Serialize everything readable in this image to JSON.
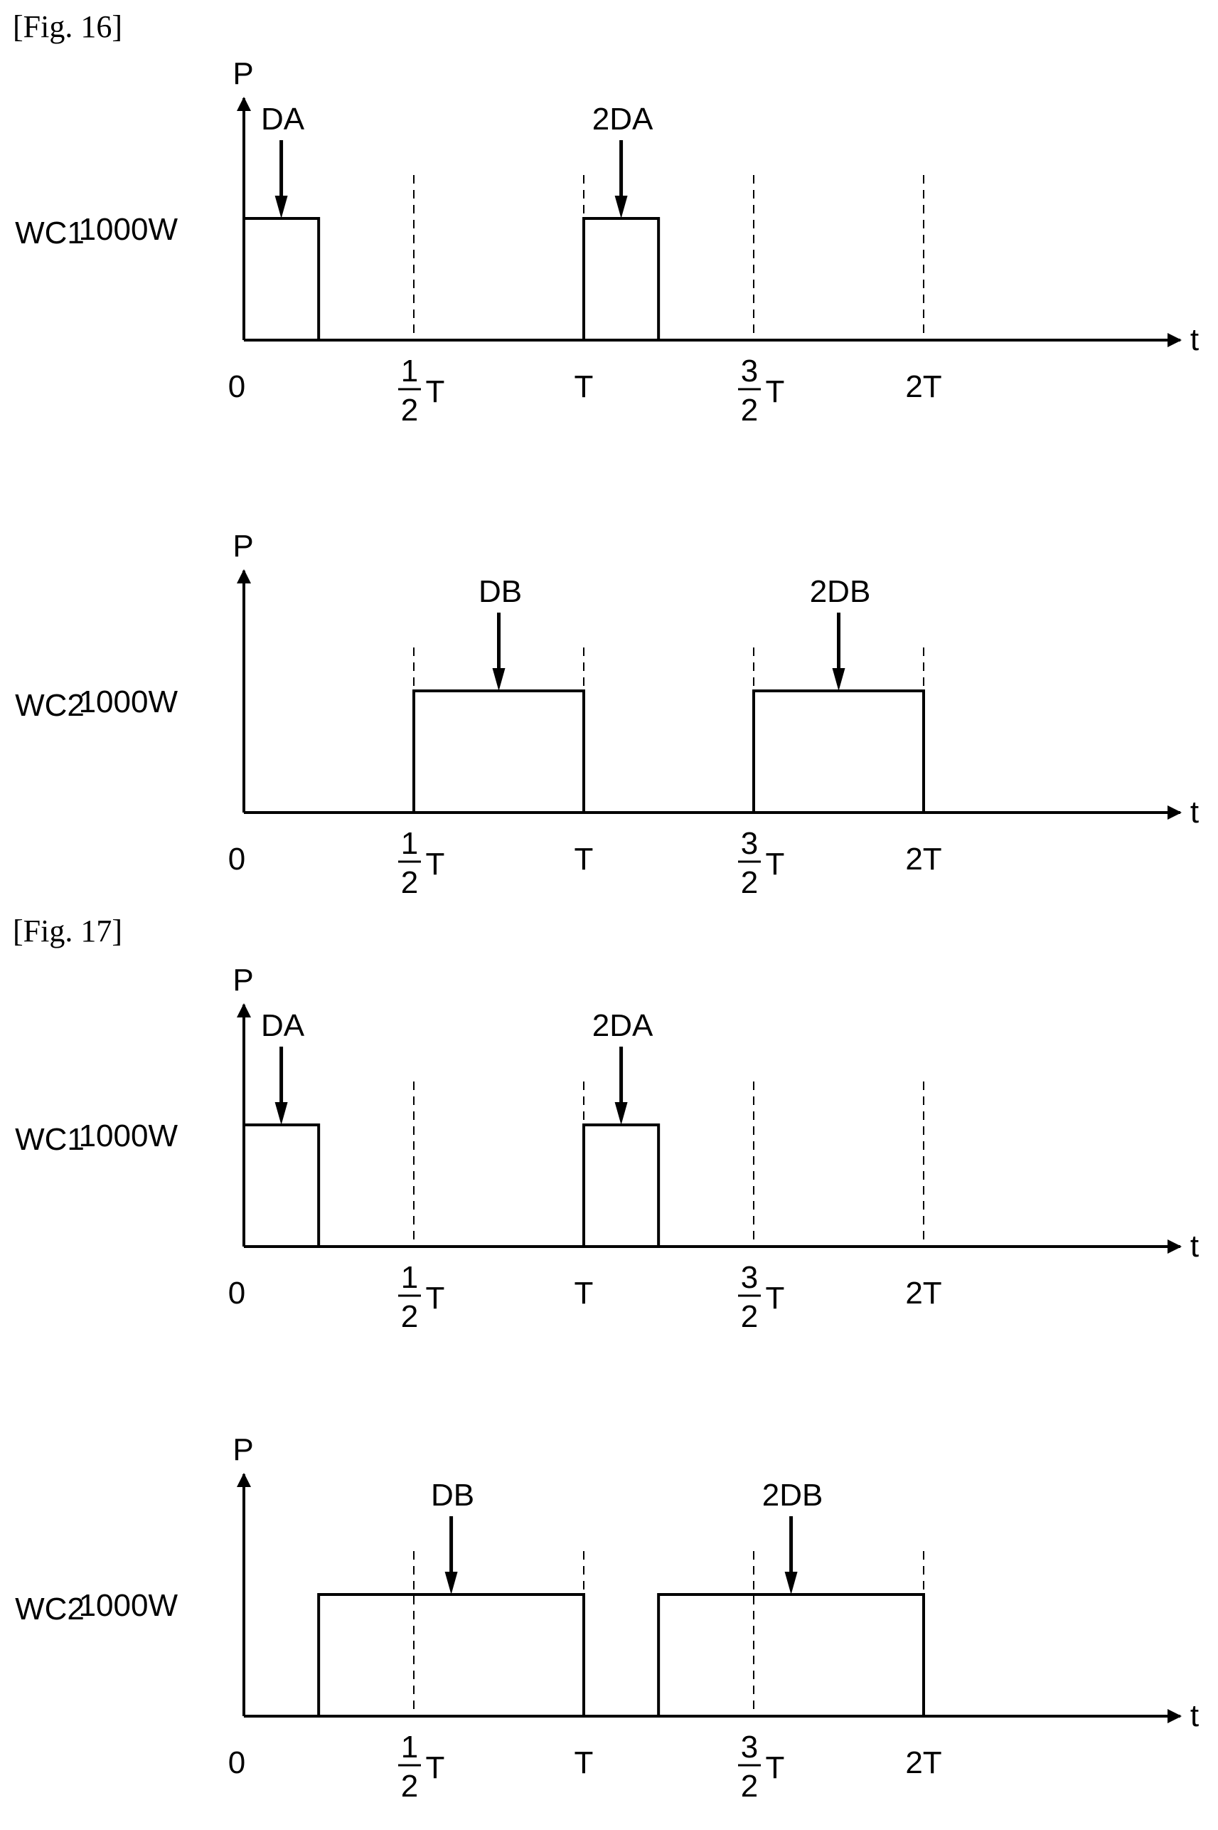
{
  "figures": [
    {
      "label": "[Fig. 16]",
      "panels": [
        {
          "channel": "WC1",
          "y_axis_label": "P",
          "x_axis_label": "t",
          "power_label": "1000W",
          "origin_label": "0",
          "ticks": [
            "1/2 T",
            "T",
            "3/2 T",
            "2T"
          ],
          "pulses": [
            {
              "start": 0,
              "end": 0.22,
              "marker": "DA",
              "marker_at": 0.11
            },
            {
              "start": 1,
              "end": 1.22,
              "marker": "2DA",
              "marker_at": 1.11
            }
          ]
        },
        {
          "channel": "WC2",
          "y_axis_label": "P",
          "x_axis_label": "t",
          "power_label": "1000W",
          "origin_label": "0",
          "ticks": [
            "1/2 T",
            "T",
            "3/2 T",
            "2T"
          ],
          "pulses": [
            {
              "start": 0.5,
              "end": 1.0,
              "marker": "DB",
              "marker_at": 0.75
            },
            {
              "start": 1.5,
              "end": 2.0,
              "marker": "2DB",
              "marker_at": 1.75
            }
          ]
        }
      ]
    },
    {
      "label": "[Fig. 17]",
      "panels": [
        {
          "channel": "WC1",
          "y_axis_label": "P",
          "x_axis_label": "t",
          "power_label": "1000W",
          "origin_label": "0",
          "ticks": [
            "1/2 T",
            "T",
            "3/2 T",
            "2T"
          ],
          "pulses": [
            {
              "start": 0,
              "end": 0.22,
              "marker": "DA",
              "marker_at": 0.11
            },
            {
              "start": 1,
              "end": 1.22,
              "marker": "2DA",
              "marker_at": 1.11
            }
          ]
        },
        {
          "channel": "WC2",
          "y_axis_label": "P",
          "x_axis_label": "t",
          "power_label": "1000W",
          "origin_label": "0",
          "ticks": [
            "1/2 T",
            "T",
            "3/2 T",
            "2T"
          ],
          "pulses": [
            {
              "start": 0.22,
              "end": 1.0,
              "marker": "DB",
              "marker_at": 0.61
            },
            {
              "start": 1.22,
              "end": 2.0,
              "marker": "2DB",
              "marker_at": 1.61
            }
          ]
        }
      ]
    }
  ]
}
